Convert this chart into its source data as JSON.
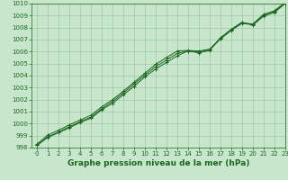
{
  "xlabel": "Graphe pression niveau de la mer (hPa)",
  "xlim": [
    -0.5,
    23
  ],
  "ylim": [
    998,
    1010
  ],
  "yticks": [
    998,
    999,
    1000,
    1001,
    1002,
    1003,
    1004,
    1005,
    1006,
    1007,
    1008,
    1009,
    1010
  ],
  "xticks": [
    0,
    1,
    2,
    3,
    4,
    5,
    6,
    7,
    8,
    9,
    10,
    11,
    12,
    13,
    14,
    15,
    16,
    17,
    18,
    19,
    20,
    21,
    22,
    23
  ],
  "bg_color": "#c8e6cc",
  "grid_color": "#a0c8a8",
  "line_color": "#1a6620",
  "line1_y": [
    998.2,
    998.85,
    999.25,
    999.65,
    1000.1,
    1000.45,
    1001.15,
    1001.7,
    1002.4,
    1003.1,
    1003.9,
    1004.55,
    1005.1,
    1005.65,
    1006.05,
    1005.9,
    1006.1,
    1007.15,
    1007.85,
    1008.45,
    1008.2,
    1008.95,
    1009.25,
    1010.0
  ],
  "line2_y": [
    998.2,
    998.9,
    999.3,
    999.75,
    1000.15,
    1000.55,
    1001.25,
    1001.85,
    1002.55,
    1003.3,
    1004.05,
    1004.75,
    1005.3,
    1005.85,
    1006.05,
    1005.95,
    1006.15,
    1007.05,
    1007.75,
    1008.35,
    1008.25,
    1009.05,
    1009.35,
    1010.05
  ],
  "line3_y": [
    998.3,
    999.05,
    999.45,
    999.9,
    1000.3,
    1000.7,
    1001.4,
    1002.0,
    1002.7,
    1003.45,
    1004.2,
    1004.95,
    1005.5,
    1006.05,
    1006.1,
    1006.05,
    1006.2,
    1007.1,
    1007.85,
    1008.4,
    1008.3,
    1009.1,
    1009.4,
    1010.1
  ],
  "font_color": "#1a6620",
  "tick_fontsize": 5.0,
  "label_fontsize": 6.5,
  "linewidth": 0.7,
  "marker_size": 2.5,
  "marker_edge_width": 0.7
}
